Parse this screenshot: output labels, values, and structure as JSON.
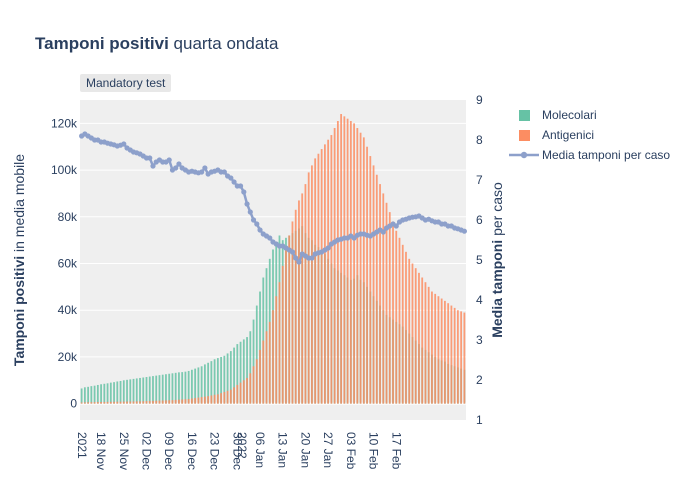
{
  "title": {
    "bold": "Tamponi positivi",
    "rest": " quarta ondata"
  },
  "annotation": "Mandatory test",
  "colors": {
    "molecolari": "#66c2a5",
    "antigenici": "#fc8d62",
    "media": "#8da0cb",
    "plot_bg": "#efefef"
  },
  "chart_data": {
    "type": "bar",
    "barmode": "overlay",
    "categories_start": "2021-11-12",
    "x_tick_labels": [
      "2021",
      "18 Nov",
      "25 Nov",
      "02 Dec",
      "09 Dec",
      "16 Dec",
      "23 Dec",
      "30 Dec",
      "2022",
      "06 Jan",
      "13 Jan",
      "20 Jan",
      "27 Jan",
      "03 Feb",
      "10 Feb",
      "17 Feb"
    ],
    "ylabel_left": {
      "bold": "Tamponi positivi",
      "rest": " in media mobile"
    },
    "ylabel_right": {
      "bold": "Media tamponi",
      "rest": " per caso"
    },
    "y_left_ticks": [
      "0",
      "20k",
      "40k",
      "60k",
      "80k",
      "100k",
      "120k"
    ],
    "y_right_ticks": [
      "1",
      "2",
      "3",
      "4",
      "5",
      "6",
      "7",
      "8",
      "9"
    ],
    "ylim_left": [
      -7000,
      130000
    ],
    "ylim_right": [
      1,
      9
    ],
    "grid": true,
    "legend_position": "top-right",
    "series": [
      {
        "name": "Molecolari",
        "type": "bar",
        "axis": "left",
        "values": [
          6500,
          7000,
          7200,
          7500,
          7700,
          8000,
          8300,
          8500,
          8700,
          9000,
          9200,
          9500,
          9700,
          10000,
          10200,
          10400,
          10600,
          10800,
          11000,
          11200,
          11400,
          11600,
          11800,
          12000,
          12200,
          12400,
          12600,
          12800,
          13000,
          13200,
          13400,
          13500,
          13700,
          14000,
          14500,
          15000,
          15500,
          16000,
          16800,
          17500,
          18200,
          19000,
          19500,
          20000,
          20500,
          21500,
          22500,
          24000,
          25500,
          26500,
          27500,
          28500,
          31000,
          36000,
          42000,
          48000,
          54000,
          58000,
          62000,
          66000,
          69000,
          72000,
          70000,
          71000,
          72000,
          73000,
          74000,
          75000,
          76000,
          73000,
          71000,
          70000,
          68000,
          67000,
          66000,
          64000,
          62000,
          60000,
          58000,
          57000,
          56000,
          55000,
          54000,
          53000,
          53500,
          55000,
          53000,
          52000,
          50000,
          48000,
          46000,
          44000,
          42000,
          40000,
          38000,
          37000,
          36000,
          35000,
          34000,
          33000,
          31500,
          30000,
          28500,
          27000,
          25500,
          24000,
          23000,
          22000,
          21000,
          20000,
          19000,
          18500,
          18000,
          17000,
          16500,
          16000,
          15500,
          15000,
          14500
        ]
      },
      {
        "name": "Antigenici",
        "type": "bar",
        "axis": "left",
        "values": [
          500,
          550,
          600,
          620,
          650,
          680,
          700,
          720,
          750,
          780,
          800,
          820,
          850,
          880,
          900,
          930,
          950,
          980,
          1000,
          1050,
          1100,
          1150,
          1200,
          1250,
          1300,
          1350,
          1400,
          1450,
          1500,
          1600,
          1700,
          1800,
          1900,
          2000,
          2200,
          2400,
          2600,
          2800,
          3000,
          3200,
          3500,
          3800,
          4000,
          4500,
          5000,
          5500,
          6000,
          7000,
          8000,
          9000,
          10000,
          11000,
          13000,
          16000,
          19000,
          23000,
          27000,
          31000,
          35000,
          40000,
          46000,
          52000,
          59000,
          66000,
          72000,
          78000,
          83000,
          87000,
          90000,
          94000,
          99000,
          102000,
          105000,
          107000,
          109000,
          111000,
          113000,
          115000,
          118000,
          121000,
          124000,
          123000,
          122000,
          121000,
          120000,
          118000,
          116000,
          114000,
          110000,
          106000,
          102000,
          98000,
          94000,
          90000,
          86000,
          82000,
          78000,
          74000,
          71000,
          68000,
          65000,
          62000,
          60000,
          58000,
          56000,
          54000,
          52000,
          50000,
          48000,
          47000,
          46000,
          45000,
          44000,
          43000,
          42000,
          41000,
          40000,
          39500,
          39000
        ]
      },
      {
        "name": "Media tamponi per caso",
        "type": "line",
        "axis": "right",
        "values": [
          8.1,
          8.15,
          8.1,
          8.05,
          8.0,
          8.0,
          7.95,
          7.95,
          7.92,
          7.9,
          7.88,
          7.85,
          7.87,
          7.9,
          7.8,
          7.75,
          7.7,
          7.68,
          7.65,
          7.6,
          7.55,
          7.55,
          7.35,
          7.45,
          7.5,
          7.45,
          7.45,
          7.5,
          7.25,
          7.3,
          7.4,
          7.3,
          7.25,
          7.2,
          7.22,
          7.2,
          7.18,
          7.2,
          7.3,
          7.15,
          7.2,
          7.22,
          7.25,
          7.2,
          7.2,
          7.1,
          7.05,
          6.95,
          6.85,
          6.85,
          6.7,
          6.4,
          6.2,
          6.0,
          5.9,
          5.75,
          5.65,
          5.6,
          5.55,
          5.45,
          5.4,
          5.35,
          5.35,
          5.3,
          5.25,
          5.2,
          5.05,
          4.95,
          5.15,
          5.1,
          5.05,
          5.05,
          5.15,
          5.18,
          5.2,
          5.25,
          5.3,
          5.4,
          5.45,
          5.5,
          5.52,
          5.55,
          5.55,
          5.6,
          5.55,
          5.62,
          5.65,
          5.65,
          5.62,
          5.6,
          5.65,
          5.7,
          5.75,
          5.7,
          5.8,
          5.85,
          5.9,
          5.85,
          5.95,
          6.0,
          6.02,
          6.05,
          6.07,
          6.08,
          6.1,
          6.05,
          6.0,
          6.02,
          5.98,
          5.95,
          5.95,
          5.9,
          5.9,
          5.85,
          5.85,
          5.8,
          5.78,
          5.75,
          5.72
        ]
      }
    ]
  }
}
